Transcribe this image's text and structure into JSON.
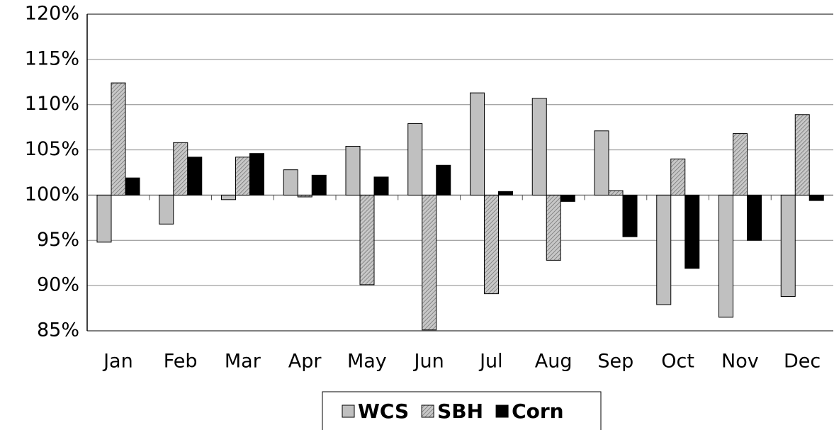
{
  "chart_data": {
    "type": "bar",
    "categories": [
      "Jan",
      "Feb",
      "Mar",
      "Apr",
      "May",
      "Jun",
      "Jul",
      "Aug",
      "Sep",
      "Oct",
      "Nov",
      "Dec"
    ],
    "series": [
      {
        "name": "WCS",
        "color": "#c0c0c0",
        "hatch": false,
        "values": [
          94.8,
          96.8,
          99.5,
          102.8,
          105.4,
          107.9,
          111.3,
          110.7,
          107.1,
          87.9,
          86.5,
          88.8
        ]
      },
      {
        "name": "SBH",
        "color": "#a8a8a8",
        "hatch": true,
        "values": [
          112.4,
          105.8,
          104.2,
          99.8,
          90.1,
          85.1,
          89.1,
          92.8,
          100.5,
          104.0,
          106.8,
          108.9
        ]
      },
      {
        "name": "Corn",
        "color": "#000000",
        "hatch": false,
        "values": [
          101.9,
          104.2,
          104.6,
          102.2,
          102.0,
          103.3,
          100.4,
          99.3,
          95.4,
          91.9,
          95.0,
          99.4
        ]
      }
    ],
    "ylim": [
      85,
      120
    ],
    "yticks": [
      {
        "value": 85,
        "label": "85%"
      },
      {
        "value": 90,
        "label": "90%"
      },
      {
        "value": 95,
        "label": "95%"
      },
      {
        "value": 100,
        "label": "100%"
      },
      {
        "value": 105,
        "label": "105%"
      },
      {
        "value": 110,
        "label": "110%"
      },
      {
        "value": 115,
        "label": "115%"
      },
      {
        "value": 120,
        "label": "120%"
      }
    ],
    "x_axis_crosses": 100,
    "grid": true,
    "legend": "bottom"
  }
}
